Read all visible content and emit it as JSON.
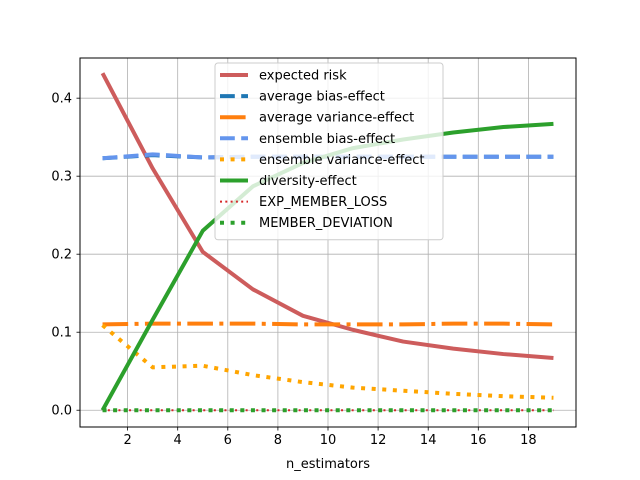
{
  "chart_data": {
    "type": "line",
    "title": "",
    "xlabel": "n_estimators",
    "ylabel": "",
    "xlim": [
      0.1,
      19.9
    ],
    "ylim": [
      -0.0215,
      0.4515
    ],
    "xticks": [
      2,
      4,
      6,
      8,
      10,
      12,
      14,
      16,
      18
    ],
    "yticks": [
      0.0,
      0.1,
      0.2,
      0.3,
      0.4
    ],
    "ytick_labels": [
      "0.0",
      "0.1",
      "0.2",
      "0.3",
      "0.4"
    ],
    "grid": true,
    "legend_position": "upper center",
    "x": [
      1,
      3,
      5,
      7,
      9,
      11,
      13,
      15,
      17,
      19
    ],
    "series": [
      {
        "name": "expected risk",
        "color": "#cd5c5c",
        "style": "solid",
        "width": 4,
        "values": [
          0.432,
          0.31,
          0.203,
          0.155,
          0.121,
          0.103,
          0.088,
          0.079,
          0.072,
          0.067
        ]
      },
      {
        "name": "average bias-effect",
        "color": "#1f77b4",
        "style": "dashed",
        "width": 4,
        "values": [
          0.323,
          0.327,
          0.324,
          0.325,
          0.325,
          0.325,
          0.325,
          0.325,
          0.325,
          0.325
        ]
      },
      {
        "name": "average variance-effect",
        "color": "#ff7f0e",
        "style": "dashdot",
        "width": 4,
        "values": [
          0.11,
          0.111,
          0.111,
          0.111,
          0.11,
          0.11,
          0.11,
          0.111,
          0.111,
          0.11
        ]
      },
      {
        "name": "ensemble bias-effect",
        "color": "#6495ed",
        "style": "dashed",
        "width": 4,
        "values": [
          0.323,
          0.328,
          0.324,
          0.325,
          0.325,
          0.325,
          0.325,
          0.325,
          0.325,
          0.325
        ]
      },
      {
        "name": "ensemble variance-effect",
        "color": "#ffa500",
        "style": "dotted",
        "width": 4,
        "values": [
          0.109,
          0.055,
          0.057,
          0.045,
          0.036,
          0.029,
          0.025,
          0.021,
          0.018,
          0.016
        ]
      },
      {
        "name": "diversity-effect",
        "color": "#2ca02c",
        "style": "solid",
        "width": 4,
        "values": [
          0.0,
          0.116,
          0.23,
          0.287,
          0.317,
          0.336,
          0.347,
          0.356,
          0.363,
          0.367
        ]
      },
      {
        "name": "EXP_MEMBER_LOSS",
        "color": "#d62728",
        "style": "dotted",
        "width": 2,
        "values": [
          0.0,
          0.0,
          0.0,
          0.0,
          0.0,
          0.0,
          0.0,
          0.0,
          0.0,
          0.0
        ]
      },
      {
        "name": "MEMBER_DEVIATION",
        "color": "#2ca02c",
        "style": "dotted",
        "width": 4,
        "values": [
          0.0,
          0.0,
          0.0,
          0.0,
          0.0,
          0.0,
          0.0,
          0.0,
          0.0,
          0.0
        ]
      }
    ]
  }
}
